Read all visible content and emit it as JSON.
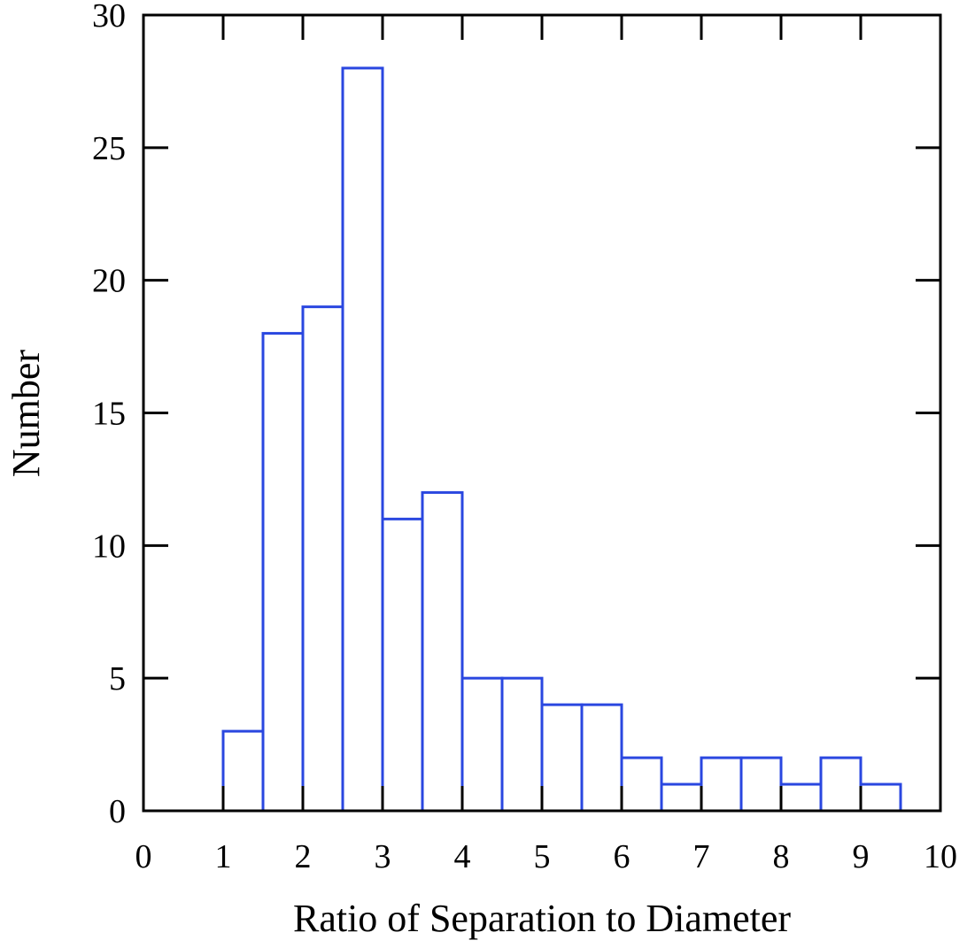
{
  "chart_data": {
    "type": "bar",
    "title": "",
    "xlabel": "Ratio of Separation to Diameter",
    "ylabel": "Number",
    "xlim": [
      0,
      10
    ],
    "ylim": [
      0,
      30
    ],
    "bin_width": 0.5,
    "bins": [
      {
        "start": 1.0,
        "end": 1.5,
        "count": 3
      },
      {
        "start": 1.5,
        "end": 2.0,
        "count": 18
      },
      {
        "start": 2.0,
        "end": 2.5,
        "count": 19
      },
      {
        "start": 2.5,
        "end": 3.0,
        "count": 28
      },
      {
        "start": 3.0,
        "end": 3.5,
        "count": 11
      },
      {
        "start": 3.5,
        "end": 4.0,
        "count": 12
      },
      {
        "start": 4.0,
        "end": 4.5,
        "count": 5
      },
      {
        "start": 4.5,
        "end": 5.0,
        "count": 5
      },
      {
        "start": 5.0,
        "end": 5.5,
        "count": 4
      },
      {
        "start": 5.5,
        "end": 6.0,
        "count": 4
      },
      {
        "start": 6.0,
        "end": 6.5,
        "count": 2
      },
      {
        "start": 6.5,
        "end": 7.0,
        "count": 1
      },
      {
        "start": 7.0,
        "end": 7.5,
        "count": 2
      },
      {
        "start": 7.5,
        "end": 8.0,
        "count": 2
      },
      {
        "start": 8.0,
        "end": 8.5,
        "count": 1
      },
      {
        "start": 8.5,
        "end": 9.0,
        "count": 2
      },
      {
        "start": 9.0,
        "end": 9.5,
        "count": 1
      }
    ],
    "x_ticks": [
      "0",
      "1",
      "2",
      "3",
      "4",
      "5",
      "6",
      "7",
      "8",
      "9",
      "10"
    ],
    "y_ticks": [
      "0",
      "5",
      "10",
      "15",
      "20",
      "25",
      "30"
    ],
    "grid": false,
    "legend": "none",
    "colors": {
      "bar_stroke": "#2a47e0",
      "bar_fill": "#ffffff",
      "axes": "#000000"
    }
  }
}
